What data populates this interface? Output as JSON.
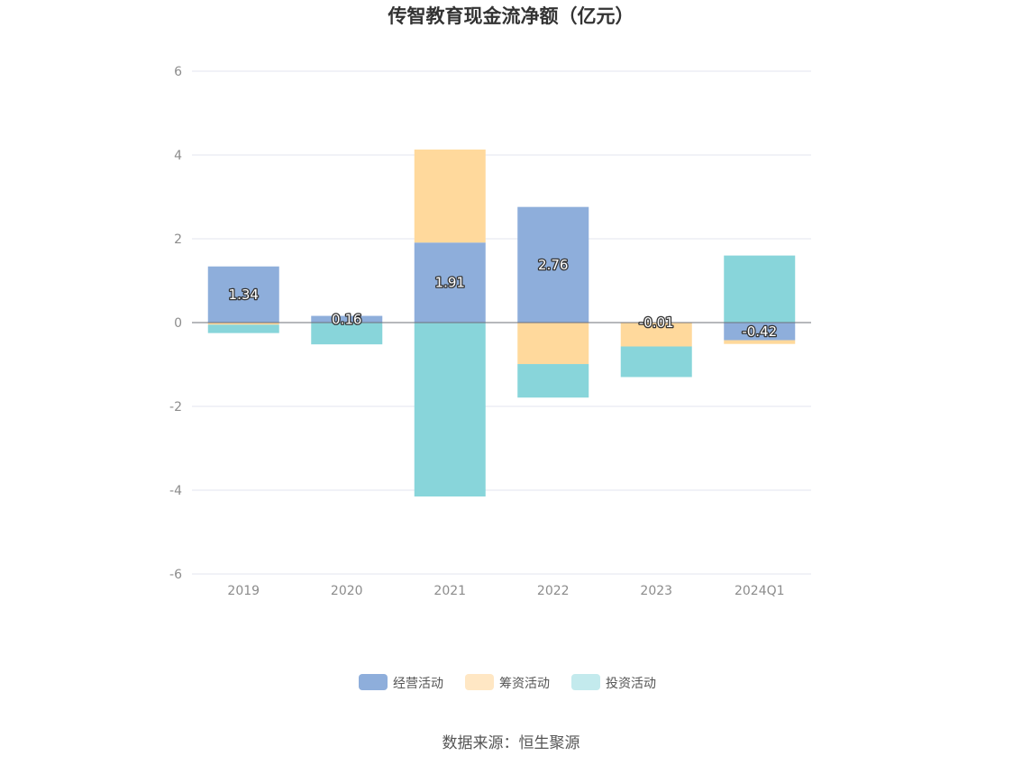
{
  "chart_data": {
    "type": "bar",
    "stacked": true,
    "title": "传智教育现金流净额（亿元）",
    "categories": [
      "2019",
      "2020",
      "2021",
      "2022",
      "2023",
      "2024Q1"
    ],
    "ylim": [
      -6,
      6
    ],
    "yticks": [
      6,
      4,
      2,
      0,
      -2,
      -4,
      -6
    ],
    "grid": true,
    "legend_position": "bottom",
    "series": [
      {
        "name": "经营活动",
        "color": "#8eaedb",
        "values": [
          1.34,
          0.16,
          1.91,
          2.76,
          -0.01,
          -0.42
        ],
        "labels": [
          "1.34",
          "0.16",
          "1.91",
          "2.76",
          "-0.01",
          "-0.42"
        ]
      },
      {
        "name": "筹资活动",
        "color": "#ffd99c",
        "values": [
          -0.05,
          0,
          2.22,
          -0.99,
          -0.56,
          -0.09
        ]
      },
      {
        "name": "投资活动",
        "color": "#88d5da",
        "values": [
          -0.2,
          -0.52,
          -4.15,
          -0.8,
          -0.73,
          1.6
        ]
      }
    ]
  },
  "legend": {
    "colors": [
      "#8eaedb",
      "#ffe7c4",
      "#c3eaed"
    ]
  },
  "source": "数据来源：恒生聚源"
}
